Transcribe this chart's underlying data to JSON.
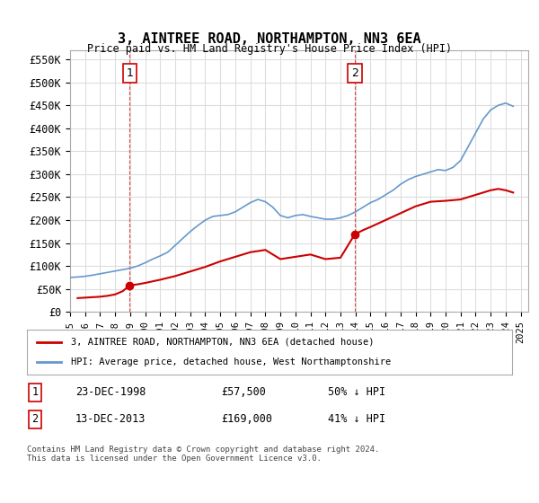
{
  "title": "3, AINTREE ROAD, NORTHAMPTON, NN3 6EA",
  "subtitle": "Price paid vs. HM Land Registry's House Price Index (HPI)",
  "ylabel_ticks": [
    "£0",
    "£50K",
    "£100K",
    "£150K",
    "£200K",
    "£250K",
    "£300K",
    "£350K",
    "£400K",
    "£450K",
    "£500K",
    "£550K"
  ],
  "ytick_values": [
    0,
    50000,
    100000,
    150000,
    200000,
    250000,
    300000,
    350000,
    400000,
    450000,
    500000,
    550000
  ],
  "ylim": [
    0,
    570000
  ],
  "xlim_start": 1995.0,
  "xlim_end": 2025.5,
  "background_color": "#ffffff",
  "plot_bg_color": "#ffffff",
  "grid_color": "#dddddd",
  "hpi_color": "#6699cc",
  "price_color": "#cc0000",
  "marker_color_1": "#cc0000",
  "marker_color_2": "#cc0000",
  "sale1": {
    "date_num": 1998.97,
    "price": 57500,
    "label": "1"
  },
  "sale2": {
    "date_num": 2013.95,
    "price": 169000,
    "label": "2"
  },
  "legend_label_red": "3, AINTREE ROAD, NORTHAMPTON, NN3 6EA (detached house)",
  "legend_label_blue": "HPI: Average price, detached house, West Northamptonshire",
  "table_row1": [
    "1",
    "23-DEC-1998",
    "£57,500",
    "50% ↓ HPI"
  ],
  "table_row2": [
    "2",
    "13-DEC-2013",
    "£169,000",
    "41% ↓ HPI"
  ],
  "footnote": "Contains HM Land Registry data © Crown copyright and database right 2024.\nThis data is licensed under the Open Government Licence v3.0.",
  "dashed_x1": 1998.97,
  "dashed_x2": 2013.95,
  "hpi_x": [
    1995.0,
    1995.5,
    1996.0,
    1996.5,
    1997.0,
    1997.5,
    1998.0,
    1998.5,
    1999.0,
    1999.5,
    2000.0,
    2000.5,
    2001.0,
    2001.5,
    2002.0,
    2002.5,
    2003.0,
    2003.5,
    2004.0,
    2004.5,
    2005.0,
    2005.5,
    2006.0,
    2006.5,
    2007.0,
    2007.5,
    2008.0,
    2008.5,
    2009.0,
    2009.5,
    2010.0,
    2010.5,
    2011.0,
    2011.5,
    2012.0,
    2012.5,
    2013.0,
    2013.5,
    2014.0,
    2014.5,
    2015.0,
    2015.5,
    2016.0,
    2016.5,
    2017.0,
    2017.5,
    2018.0,
    2018.5,
    2019.0,
    2019.5,
    2020.0,
    2020.5,
    2021.0,
    2021.5,
    2022.0,
    2022.5,
    2023.0,
    2023.5,
    2024.0,
    2024.5
  ],
  "hpi_y": [
    75000,
    76000,
    77500,
    80000,
    83000,
    86000,
    89000,
    92000,
    95000,
    100000,
    107000,
    115000,
    122000,
    130000,
    145000,
    160000,
    175000,
    188000,
    200000,
    208000,
    210000,
    212000,
    218000,
    228000,
    238000,
    245000,
    240000,
    228000,
    210000,
    205000,
    210000,
    212000,
    208000,
    205000,
    202000,
    202000,
    205000,
    210000,
    218000,
    228000,
    238000,
    245000,
    255000,
    265000,
    278000,
    288000,
    295000,
    300000,
    305000,
    310000,
    308000,
    315000,
    330000,
    360000,
    390000,
    420000,
    440000,
    450000,
    455000,
    448000
  ],
  "price_x": [
    1995.5,
    1996.0,
    1996.5,
    1997.0,
    1997.5,
    1998.0,
    1998.5,
    1998.97,
    1999.5,
    2000.0,
    2001.0,
    2002.0,
    2003.0,
    2004.0,
    2005.0,
    2006.0,
    2007.0,
    2008.0,
    2008.5,
    2009.0,
    2010.0,
    2011.0,
    2012.0,
    2013.0,
    2013.95,
    2014.5,
    2015.0,
    2016.0,
    2017.0,
    2018.0,
    2019.0,
    2020.0,
    2021.0,
    2022.0,
    2023.0,
    2023.5,
    2024.0,
    2024.5
  ],
  "price_y": [
    30000,
    31000,
    32000,
    33000,
    35000,
    38000,
    45000,
    57500,
    60000,
    63000,
    70000,
    78000,
    88000,
    98000,
    110000,
    120000,
    130000,
    135000,
    125000,
    115000,
    120000,
    125000,
    115000,
    118000,
    169000,
    178000,
    185000,
    200000,
    215000,
    230000,
    240000,
    242000,
    245000,
    255000,
    265000,
    268000,
    265000,
    260000
  ]
}
